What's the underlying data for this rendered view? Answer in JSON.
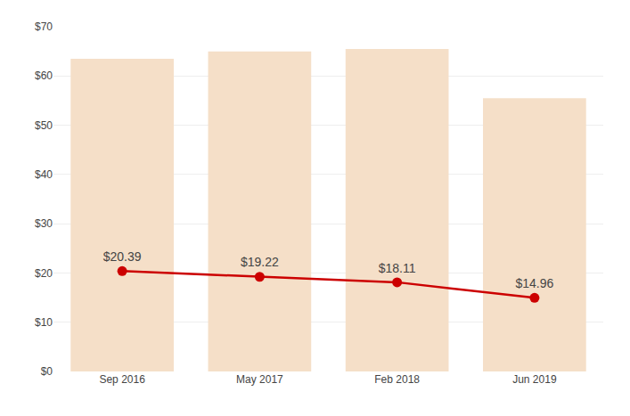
{
  "chart_data": {
    "type": "bar",
    "categories": [
      "Sep 2016",
      "May 2017",
      "Feb 2018",
      "Jun 2019"
    ],
    "series": [
      {
        "type": "bar",
        "color": "#f5dfc8",
        "values": [
          63.5,
          65.0,
          65.5,
          55.5
        ]
      },
      {
        "type": "line",
        "color": "#cc0000",
        "marker": "circle",
        "line_style": "solid",
        "data_labels": true,
        "values": [
          20.39,
          19.22,
          18.11,
          14.96
        ],
        "value_labels": [
          "$20.39",
          "$19.22",
          "$18.11",
          "$14.96"
        ]
      }
    ],
    "ylim": [
      0,
      70
    ],
    "yticks": [
      {
        "value": 0,
        "label": "$0"
      },
      {
        "value": 10,
        "label": "$10"
      },
      {
        "value": 20,
        "label": "$20"
      },
      {
        "value": 30,
        "label": "$30"
      },
      {
        "value": 40,
        "label": "$40"
      },
      {
        "value": 50,
        "label": "$50"
      },
      {
        "value": 60,
        "label": "$60"
      },
      {
        "value": 70,
        "label": "$70"
      }
    ],
    "grid": true
  }
}
